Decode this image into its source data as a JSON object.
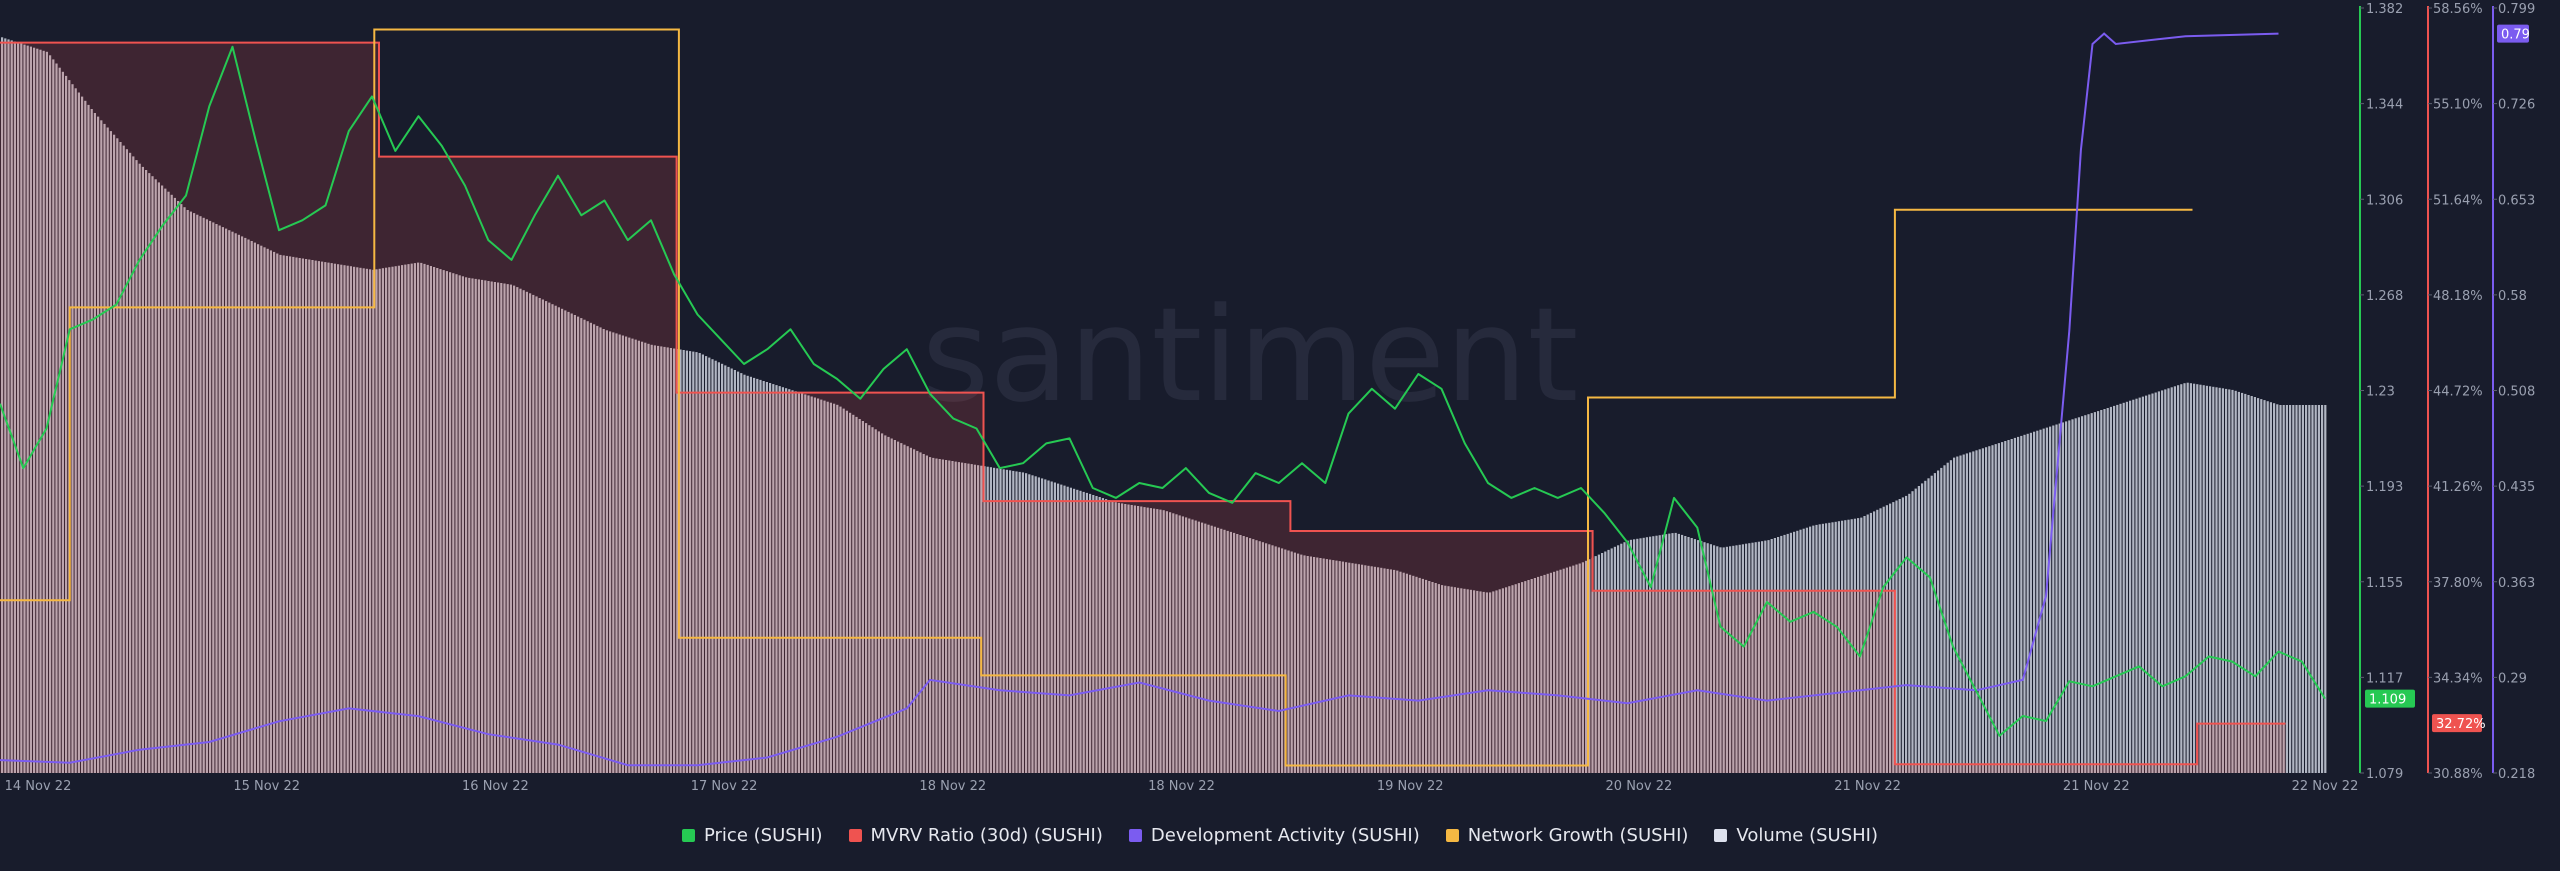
{
  "chart_data": {
    "type": "line",
    "watermark": "santiment",
    "x_ticks": [
      "14 Nov 22",
      "15 Nov 22",
      "16 Nov 22",
      "17 Nov 22",
      "18 Nov 22",
      "18 Nov 22",
      "19 Nov 22",
      "20 Nov 22",
      "21 Nov 22",
      "21 Nov 22",
      "22 Nov 22"
    ],
    "axes": {
      "price": {
        "ticks": [
          "1.382",
          "1.344",
          "1.306",
          "1.268",
          "1.23",
          "1.193",
          "1.155",
          "1.117",
          "1.079"
        ],
        "ylim": [
          1.079,
          1.382
        ],
        "current": "1.109",
        "color": "#26c953"
      },
      "mvrv": {
        "ticks": [
          "58.56%",
          "55.10%",
          "51.64%",
          "48.18%",
          "44.72%",
          "41.26%",
          "37.80%",
          "34.34%",
          "30.88%"
        ],
        "ylim": [
          30.88,
          58.56
        ],
        "current": "32.72%",
        "color": "#ef5350"
      },
      "dev": {
        "ticks": [
          "0.799",
          "0.726",
          "0.653",
          "0.58",
          "0.508",
          "0.435",
          "0.363",
          "0.29",
          "0.218"
        ],
        "ylim": [
          0.218,
          0.799
        ],
        "current": "0.79",
        "color": "#7b5cf0"
      }
    },
    "series": [
      {
        "name": "Price (SUSHI)",
        "color": "#26c953",
        "axis": "price",
        "x": [
          0,
          1,
          2,
          3,
          4,
          5,
          6,
          7,
          8,
          9,
          10,
          11,
          12,
          13,
          14,
          15,
          16,
          17,
          18,
          19,
          20,
          21,
          22,
          23,
          24,
          25,
          26,
          27,
          28,
          29,
          30,
          31,
          32,
          33,
          34,
          35,
          36,
          37,
          38,
          39,
          40,
          41,
          42,
          43,
          44,
          45,
          46,
          47,
          48,
          49,
          50,
          51,
          52,
          53,
          54,
          55,
          56,
          57,
          58,
          59,
          60,
          61,
          62,
          63,
          64,
          65,
          66,
          67,
          68,
          69,
          70,
          71,
          72,
          73,
          74,
          75,
          76,
          77,
          78,
          79,
          80,
          81,
          82,
          83,
          84,
          85,
          86,
          87,
          88,
          89,
          90,
          91,
          92,
          93,
          94,
          95,
          96,
          97,
          98,
          99,
          100
        ],
        "values": [
          1.228,
          1.202,
          1.218,
          1.258,
          1.262,
          1.268,
          1.286,
          1.3,
          1.312,
          1.348,
          1.372,
          1.334,
          1.298,
          1.302,
          1.308,
          1.338,
          1.352,
          1.33,
          1.344,
          1.332,
          1.316,
          1.294,
          1.286,
          1.304,
          1.32,
          1.304,
          1.31,
          1.294,
          1.302,
          1.28,
          1.264,
          1.254,
          1.244,
          1.25,
          1.258,
          1.244,
          1.238,
          1.23,
          1.242,
          1.25,
          1.232,
          1.222,
          1.218,
          1.202,
          1.204,
          1.212,
          1.214,
          1.194,
          1.19,
          1.196,
          1.194,
          1.202,
          1.192,
          1.188,
          1.2,
          1.196,
          1.204,
          1.196,
          1.224,
          1.234,
          1.226,
          1.24,
          1.234,
          1.212,
          1.196,
          1.19,
          1.194,
          1.19,
          1.194,
          1.184,
          1.172,
          1.154,
          1.19,
          1.178,
          1.138,
          1.13,
          1.148,
          1.14,
          1.144,
          1.138,
          1.126,
          1.154,
          1.166,
          1.158,
          1.13,
          1.112,
          1.094,
          1.102,
          1.1,
          1.116,
          1.114,
          1.118,
          1.122,
          1.114,
          1.118,
          1.126,
          1.124,
          1.118,
          1.128,
          1.124,
          1.109
        ]
      },
      {
        "name": "MVRV Ratio (30d) (SUSHI)",
        "color": "#ef5350",
        "axis": "mvrv",
        "x": [
          0,
          16.3,
          16.3,
          29.1,
          29.1,
          42.3,
          42.3,
          55.5,
          55.5,
          68.5,
          68.5,
          81.5,
          81.5,
          94.5,
          94.5,
          98.3
        ],
        "values": [
          57.8,
          57.8,
          53.6,
          53.6,
          44.9,
          44.9,
          40.9,
          40.9,
          39.8,
          39.8,
          37.6,
          37.6,
          31.2,
          31.2,
          32.7,
          32.7
        ]
      },
      {
        "name": "Development Activity (SUSHI)",
        "color": "#7b5cf0",
        "axis": "dev",
        "x": [
          0,
          3,
          6,
          9,
          12,
          15,
          18,
          21,
          24,
          27,
          30,
          33,
          36,
          39,
          40,
          43,
          46,
          49,
          52,
          55,
          58,
          61,
          64,
          67,
          70,
          73,
          76,
          79,
          82,
          85,
          87,
          88,
          89,
          89.5,
          90,
          90.5,
          91,
          94,
          98
        ],
        "values": [
          0.228,
          0.226,
          0.236,
          0.242,
          0.258,
          0.268,
          0.262,
          0.248,
          0.24,
          0.224,
          0.224,
          0.23,
          0.246,
          0.268,
          0.29,
          0.282,
          0.278,
          0.288,
          0.274,
          0.266,
          0.278,
          0.274,
          0.282,
          0.278,
          0.272,
          0.282,
          0.274,
          0.28,
          0.286,
          0.282,
          0.29,
          0.355,
          0.56,
          0.7,
          0.782,
          0.79,
          0.782,
          0.788,
          0.79
        ]
      },
      {
        "name": "Network Growth (SUSHI)",
        "color": "#f5b843",
        "axis": "netgrowth",
        "x": [
          0,
          3,
          3,
          16.1,
          16.1,
          29.2,
          29.2,
          42.2,
          42.2,
          55.3,
          55.3,
          68.3,
          68.3,
          81.5,
          81.5,
          94.3
        ],
        "values": [
          0.23,
          0.23,
          0.62,
          0.62,
          0.99,
          0.99,
          0.18,
          0.18,
          0.13,
          0.13,
          0.01,
          0.01,
          0.5,
          0.5,
          0.75,
          0.75
        ]
      },
      {
        "name": "Volume (SUSHI)",
        "color": "#dde1ee",
        "axis": "volume",
        "x": [
          0,
          2,
          4,
          6,
          8,
          10,
          12,
          14,
          16,
          18,
          20,
          22,
          24,
          26,
          28,
          30,
          32,
          34,
          36,
          38,
          40,
          42,
          44,
          46,
          48,
          50,
          52,
          54,
          56,
          58,
          60,
          62,
          64,
          66,
          68,
          70,
          72,
          74,
          76,
          78,
          80,
          82,
          84,
          86,
          88,
          90,
          92,
          94,
          96,
          98
        ],
        "values": [
          0.98,
          0.96,
          0.88,
          0.81,
          0.75,
          0.72,
          0.69,
          0.68,
          0.67,
          0.68,
          0.66,
          0.65,
          0.62,
          0.59,
          0.57,
          0.56,
          0.53,
          0.51,
          0.49,
          0.45,
          0.42,
          0.41,
          0.4,
          0.38,
          0.36,
          0.35,
          0.33,
          0.31,
          0.29,
          0.28,
          0.27,
          0.25,
          0.24,
          0.26,
          0.28,
          0.31,
          0.32,
          0.3,
          0.31,
          0.33,
          0.34,
          0.37,
          0.42,
          0.44,
          0.46,
          0.48,
          0.5,
          0.52,
          0.51,
          0.49
        ]
      }
    ],
    "legend": [
      {
        "label": "Price (SUSHI)",
        "color": "#26c953"
      },
      {
        "label": "MVRV Ratio (30d) (SUSHI)",
        "color": "#ef5350"
      },
      {
        "label": "Development Activity (SUSHI)",
        "color": "#7b5cf0"
      },
      {
        "label": "Network Growth (SUSHI)",
        "color": "#f5b843"
      },
      {
        "label": "Volume (SUSHI)",
        "color": "#dde1ee"
      }
    ],
    "grid": false,
    "legend_placement": "bottom"
  }
}
